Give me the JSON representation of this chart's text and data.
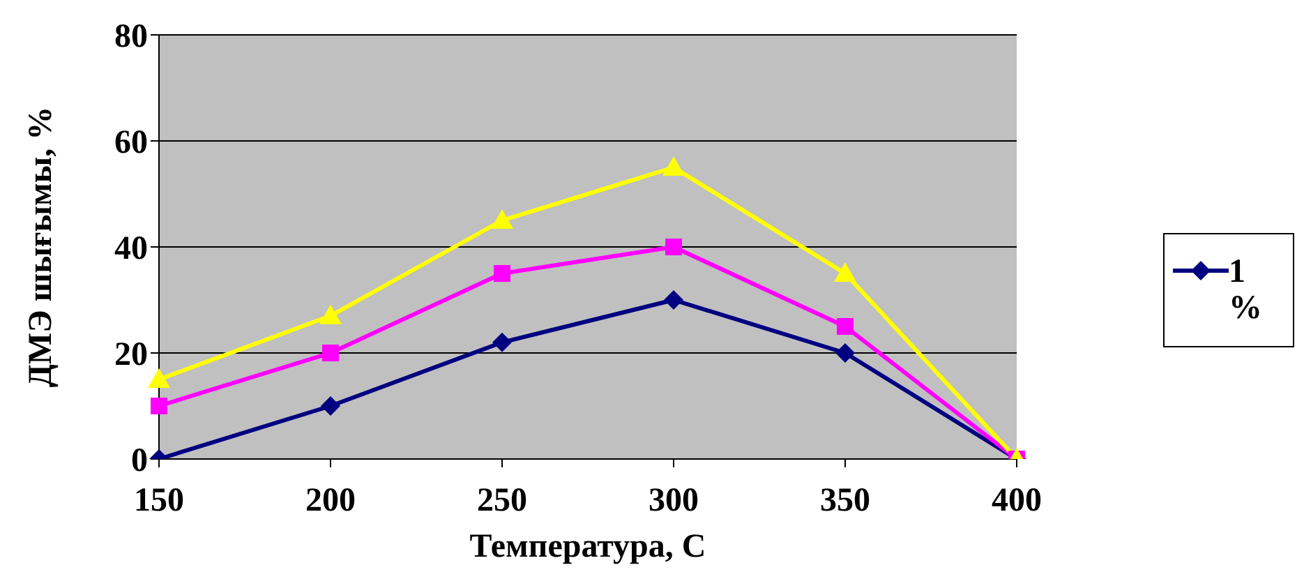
{
  "chart_data": {
    "type": "line",
    "xlabel": "Температура, С",
    "ylabel": "ДМЭ шығымы, %",
    "categories": [
      "150",
      "200",
      "250",
      "300",
      "350",
      "400"
    ],
    "series": [
      {
        "name": "1 %",
        "color": "#000080",
        "marker": "diamond",
        "values": [
          0,
          10,
          22,
          30,
          20,
          0
        ]
      },
      {
        "color": "#ff00ff",
        "marker": "square",
        "values": [
          10,
          20,
          35,
          40,
          25,
          0
        ]
      },
      {
        "color": "#ffff00",
        "marker": "triangle",
        "values": [
          15,
          27,
          45,
          55,
          35,
          0
        ]
      }
    ],
    "ylim": [
      0,
      80
    ],
    "yticks": [
      0,
      20,
      40,
      60,
      80
    ],
    "grid": "y",
    "legend": "right"
  }
}
